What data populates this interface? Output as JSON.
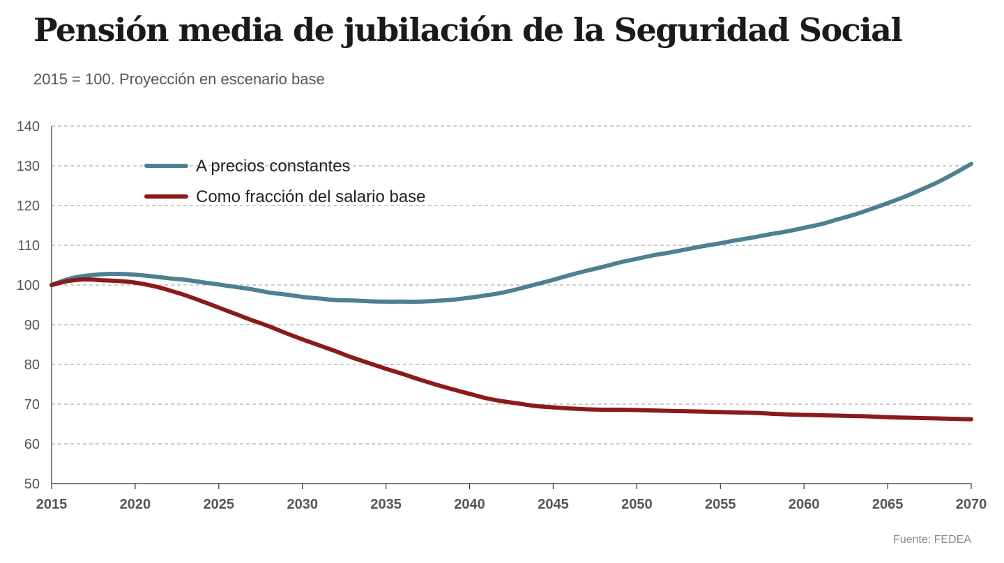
{
  "header": {
    "title": "Pensión media de jubilación de la Seguridad Social",
    "subtitle": "2015 = 100. Proyección en escenario base"
  },
  "footer": {
    "source": "Fuente: FEDEA"
  },
  "colors": {
    "series_constant": "#4d8090",
    "series_salary": "#8b1a1a",
    "grid": "#9a9a9a",
    "axis": "#333333"
  },
  "chart_data": {
    "type": "line",
    "title": "Pensión media de jubilación de la Seguridad Social",
    "subtitle": "2015 = 100. Proyección en escenario base",
    "xlabel": "",
    "ylabel": "",
    "xlim": [
      2015,
      2070
    ],
    "ylim": [
      50,
      140
    ],
    "xticks": [
      2015,
      2020,
      2025,
      2030,
      2035,
      2040,
      2045,
      2050,
      2055,
      2060,
      2065,
      2070
    ],
    "yticks": [
      50,
      60,
      70,
      80,
      90,
      100,
      110,
      120,
      130,
      140
    ],
    "grid": true,
    "legend_position": "top-left",
    "x": [
      2015,
      2016,
      2017,
      2018,
      2019,
      2020,
      2021,
      2022,
      2023,
      2024,
      2025,
      2026,
      2027,
      2028,
      2029,
      2030,
      2031,
      2032,
      2033,
      2034,
      2035,
      2036,
      2037,
      2038,
      2039,
      2040,
      2041,
      2042,
      2043,
      2044,
      2045,
      2046,
      2047,
      2048,
      2049,
      2050,
      2051,
      2052,
      2053,
      2054,
      2055,
      2056,
      2057,
      2058,
      2059,
      2060,
      2061,
      2062,
      2063,
      2064,
      2065,
      2066,
      2067,
      2068,
      2069,
      2070
    ],
    "series": [
      {
        "name": "A precios constantes",
        "values": [
          100,
          101.5,
          102.3,
          102.7,
          102.8,
          102.6,
          102.2,
          101.7,
          101.3,
          100.7,
          100.1,
          99.5,
          98.9,
          98.1,
          97.6,
          97.0,
          96.6,
          96.2,
          96.1,
          95.9,
          95.8,
          95.8,
          95.8,
          96.0,
          96.3,
          96.8,
          97.4,
          98.1,
          99.1,
          100.2,
          101.3,
          102.5,
          103.6,
          104.6,
          105.7,
          106.6,
          107.5,
          108.2,
          109.0,
          109.8,
          110.5,
          111.3,
          112.0,
          112.8,
          113.5,
          114.4,
          115.3,
          116.5,
          117.7,
          119.1,
          120.6,
          122.2,
          124.0,
          125.9,
          128.1,
          130.5
        ]
      },
      {
        "name": "Como fracción del salario base",
        "values": [
          100,
          101.0,
          101.4,
          101.2,
          101.0,
          100.6,
          99.8,
          98.7,
          97.4,
          95.9,
          94.3,
          92.7,
          91.1,
          89.6,
          87.9,
          86.3,
          84.8,
          83.3,
          81.7,
          80.3,
          78.9,
          77.6,
          76.2,
          74.9,
          73.7,
          72.6,
          71.5,
          70.7,
          70.1,
          69.5,
          69.2,
          68.9,
          68.7,
          68.6,
          68.6,
          68.5,
          68.4,
          68.3,
          68.2,
          68.1,
          68.0,
          67.9,
          67.8,
          67.6,
          67.4,
          67.3,
          67.2,
          67.1,
          67.0,
          66.9,
          66.7,
          66.6,
          66.5,
          66.4,
          66.3,
          66.2
        ]
      }
    ],
    "source": "Fuente: FEDEA"
  }
}
